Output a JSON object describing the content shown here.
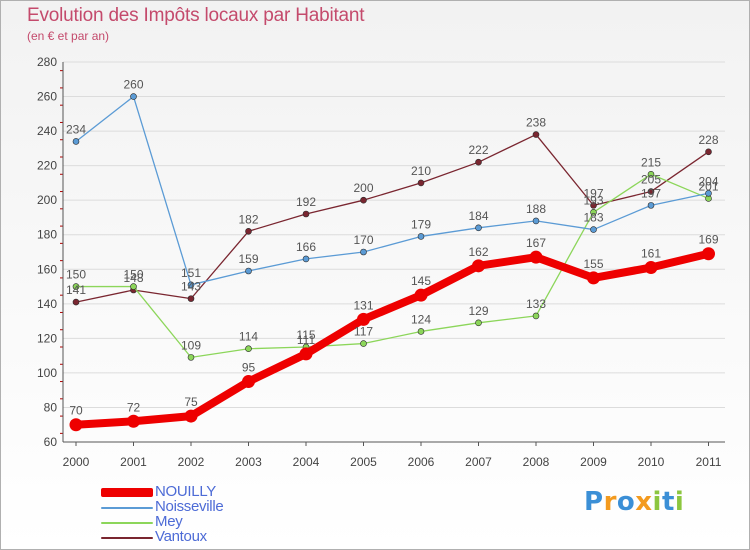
{
  "header": {
    "title": "Evolution des Impôts locaux par Habitant",
    "subtitle": "(en € et par an)"
  },
  "chart_data": {
    "type": "line",
    "title": "Evolution des Impôts locaux par Habitant",
    "subtitle": "(en € et par an)",
    "xlabel": "",
    "ylabel": "",
    "ylim": [
      60,
      280
    ],
    "yticks": [
      60,
      80,
      100,
      120,
      140,
      160,
      180,
      200,
      220,
      240,
      260,
      280
    ],
    "categories": [
      "2000",
      "2001",
      "2002",
      "2003",
      "2004",
      "2005",
      "2006",
      "2007",
      "2008",
      "2009",
      "2010",
      "2011"
    ],
    "grid": "horizontal",
    "legend_position": "bottom-left",
    "series": [
      {
        "name": "Vantoux",
        "color": "#7a2630",
        "values": [
          141,
          148,
          143,
          182,
          192,
          200,
          210,
          222,
          238,
          197,
          205,
          228
        ]
      },
      {
        "name": "Mey",
        "color": "#8cd65a",
        "values": [
          150,
          150,
          109,
          114,
          115,
          117,
          124,
          129,
          133,
          193,
          215,
          201
        ]
      },
      {
        "name": "Noisseville",
        "color": "#5b9bd5",
        "values": [
          234,
          260,
          151,
          159,
          166,
          170,
          179,
          184,
          188,
          183,
          197,
          204
        ]
      },
      {
        "name": "NOUILLY",
        "color": "#ee0000",
        "values": [
          70,
          72,
          75,
          95,
          111,
          131,
          145,
          162,
          167,
          155,
          161,
          169
        ]
      }
    ]
  },
  "legend": {
    "items": [
      {
        "label": "NOUILLY",
        "color": "#ee0000"
      },
      {
        "label": "Noisseville",
        "color": "#5b9bd5"
      },
      {
        "label": "Mey",
        "color": "#8cd65a"
      },
      {
        "label": "Vantoux",
        "color": "#7a2630"
      }
    ]
  },
  "logo": {
    "text": "Proxiti",
    "chars": [
      "P",
      "r",
      "o",
      "x",
      "i",
      "t",
      "i"
    ]
  }
}
